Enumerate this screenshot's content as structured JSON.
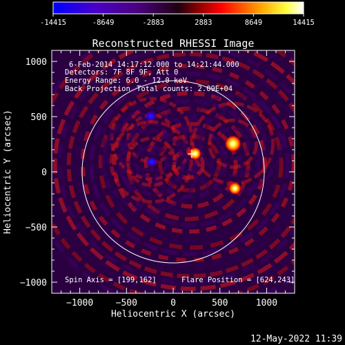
{
  "colorbar": {
    "tick_labels": [
      "-14415",
      "-8649",
      "-2883",
      "2883",
      "8649",
      "14415"
    ],
    "tick_values": [
      -14415,
      -8649,
      -2883,
      2883,
      8649,
      14415
    ],
    "range": [
      -14415,
      14415
    ],
    "colors": [
      "#0000ff",
      "#7f00ff",
      "#000000",
      "#ff0000",
      "#ffa500",
      "#ffff00",
      "#ffffff"
    ]
  },
  "chart_data": {
    "type": "heatmap",
    "title": "Reconstructed RHESSI Image",
    "xlabel": "Heliocentric X (arcsec)",
    "ylabel": "Heliocentric Y (arcsec)",
    "xlim": [
      -1300,
      1300
    ],
    "ylim": [
      -1100,
      1100
    ],
    "x_ticks": [
      -1000,
      -500,
      0,
      500,
      1000
    ],
    "y_ticks": [
      -1000,
      -500,
      0,
      500,
      1000
    ],
    "x_tick_labels": [
      "−1000",
      "−500",
      "0",
      "500",
      "1000"
    ],
    "y_tick_labels": [
      "−1000",
      "−500",
      "0",
      "500",
      "1000"
    ],
    "annotations": {
      "time": "6-Feb-2014 14:17:12.000 to 14:21:44.000",
      "detectors": "Detectors: 7F 8F 9F, Att 0",
      "energy": "Energy Range: 6.0 - 12.0 keV",
      "method": "Back Projection",
      "counts": "Total counts: 2.09E+04",
      "spin_axis": "Spin Axis = [199,162]",
      "flare_position": "Flare Position = [624,243]"
    },
    "solar_limb_radius_arcsec": 975,
    "cross_marker": [
      199,
      162
    ],
    "bright_sources": [
      {
        "x": 640,
        "y": 255,
        "level": "max"
      },
      {
        "x": 660,
        "y": -150,
        "level": "high"
      },
      {
        "x": 235,
        "y": 165,
        "level": "high"
      }
    ],
    "negative_sources": [
      {
        "x": -240,
        "y": 505
      },
      {
        "x": -230,
        "y": 90
      }
    ]
  },
  "footer": {
    "date": "12-May-2022 11:39"
  }
}
